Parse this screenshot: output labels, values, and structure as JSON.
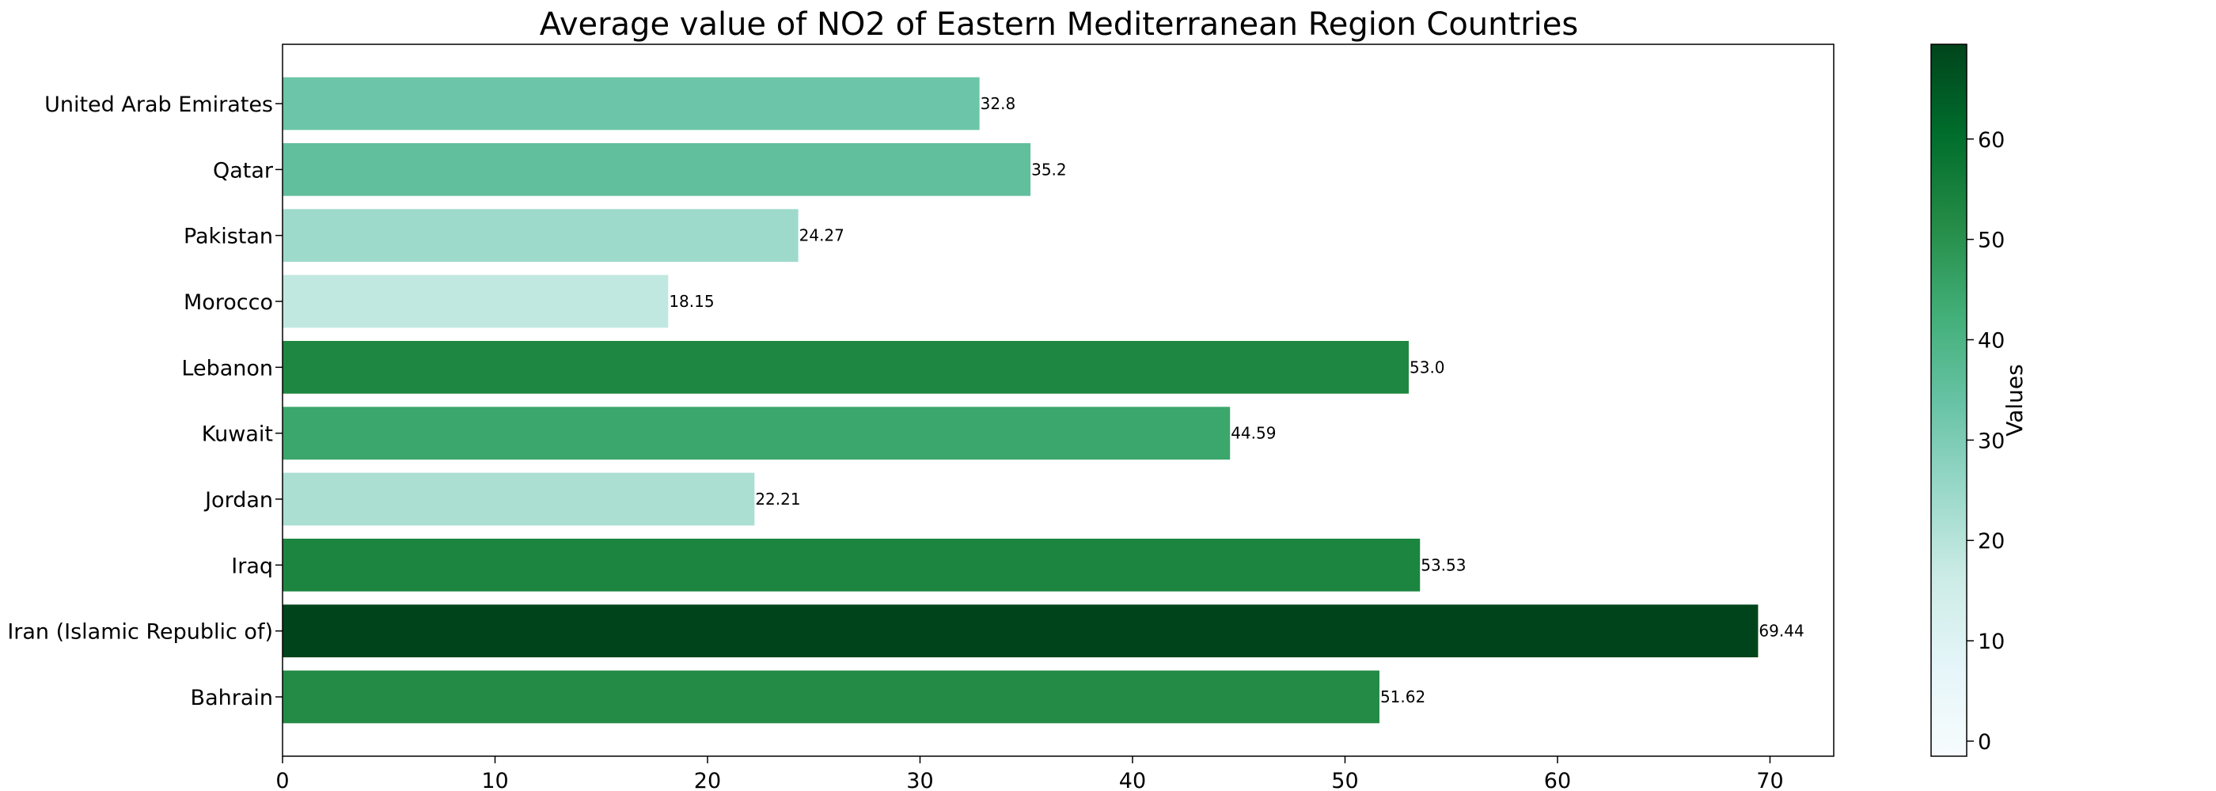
{
  "chart_data": {
    "type": "bar",
    "orientation": "horizontal",
    "title": "Average value of NO2 of Eastern Mediterranean Region Countries",
    "xlabel": "",
    "ylabel": "",
    "categories": [
      "Bahrain",
      "Iran (Islamic Republic of)",
      "Iraq",
      "Jordan",
      "Kuwait",
      "Lebanon",
      "Morocco",
      "Pakistan",
      "Qatar",
      "United Arab Emirates"
    ],
    "values": [
      51.62,
      69.44,
      53.53,
      22.21,
      44.59,
      53.0,
      18.15,
      24.27,
      35.2,
      32.8
    ],
    "value_labels": [
      "51.62",
      "69.44",
      "53.53",
      "22.21",
      "44.59",
      "53.0",
      "18.15",
      "24.27",
      "35.2",
      "32.8"
    ],
    "xlim": [
      0,
      73
    ],
    "xticks": [
      0,
      10,
      20,
      30,
      40,
      50,
      60,
      70
    ],
    "grid": false,
    "colorbar": {
      "label": "Values",
      "range": [
        -1.5,
        69.44
      ],
      "ticks": [
        0,
        10,
        20,
        30,
        40,
        50,
        60
      ],
      "colormap": "BuGn",
      "stops": [
        "#f7fcfd",
        "#e5f5f9",
        "#ccece6",
        "#99d8c9",
        "#66c2a4",
        "#41ae76",
        "#238b45",
        "#006d2c",
        "#00441b"
      ]
    }
  }
}
